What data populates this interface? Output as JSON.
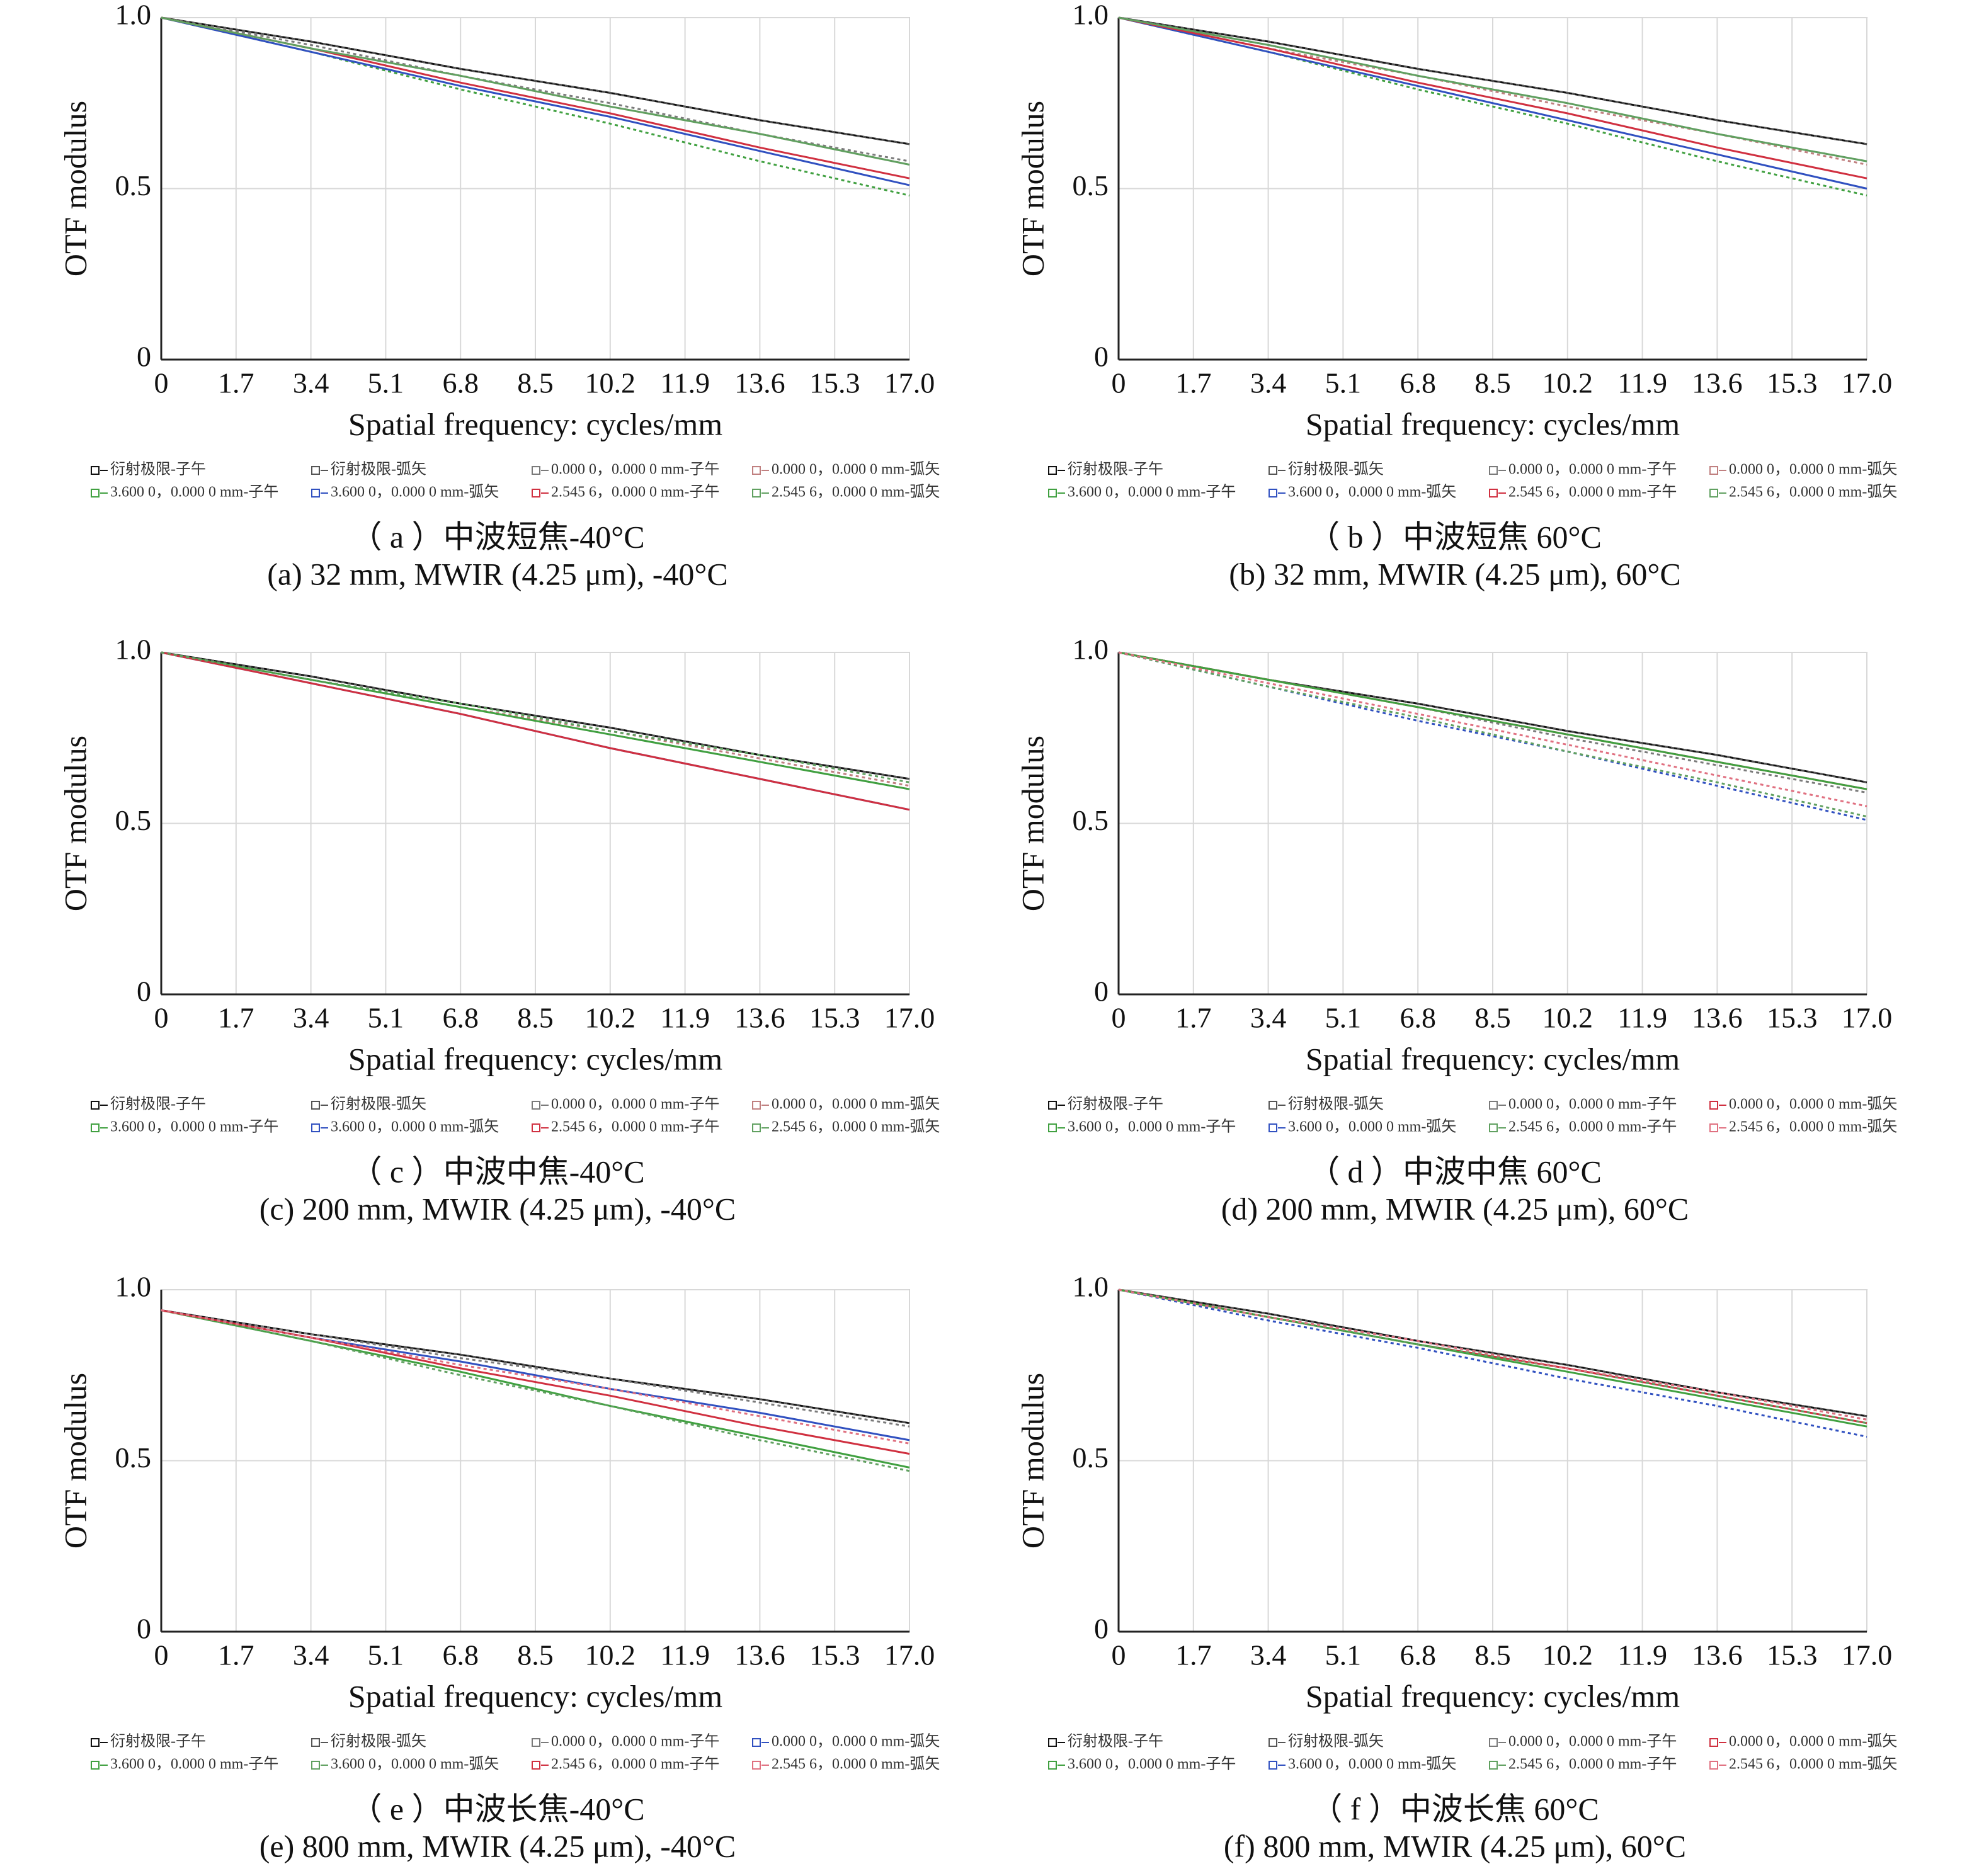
{
  "chart_data": [
    {
      "type": "line",
      "title": "（ a ）中波短焦-40°C",
      "caption": "(a) 32 mm, MWIR (4.25 μm), -40°C",
      "xlabel": "Spatial frequency: cycles/mm",
      "ylabel": "OTF modulus",
      "xlim": [
        0,
        17
      ],
      "ylim": [
        0,
        1
      ],
      "xticks": [
        0,
        1.7,
        3.4,
        5.1,
        6.8,
        8.5,
        10.2,
        11.9,
        13.6,
        15.3,
        {
          "value": 17,
          "label": "17.0"
        }
      ],
      "yticks": [
        0,
        0.5,
        {
          "value": 1,
          "label": "1.0"
        }
      ],
      "grid": true,
      "x": [
        0,
        3.4,
        6.8,
        10.2,
        13.6,
        17
      ],
      "series": [
        {
          "name": "衍射极限-子午",
          "color": "#111111",
          "dashed": false,
          "values": [
            1,
            0.93,
            0.85,
            0.78,
            0.7,
            0.63
          ]
        },
        {
          "name": "衍射极限-弧矢",
          "color": "#555555",
          "dashed": true,
          "values": [
            1,
            0.93,
            0.85,
            0.78,
            0.7,
            0.63
          ]
        },
        {
          "name": "0.000 0，0.000 0 mm-子午",
          "color": "#7a7a7a",
          "dashed": true,
          "values": [
            1,
            0.92,
            0.83,
            0.75,
            0.66,
            0.58
          ]
        },
        {
          "name": "0.000 0，0.000 0 mm-弧矢",
          "color": "#c08080",
          "dashed": true,
          "values": [
            1,
            0.91,
            0.83,
            0.74,
            0.66,
            0.57
          ]
        },
        {
          "name": "3.600 0，0.000 0 mm-子午",
          "color": "#40a040",
          "dashed": true,
          "values": [
            1,
            0.9,
            0.79,
            0.69,
            0.58,
            0.48
          ]
        },
        {
          "name": "3.600 0，0.000 0 mm-弧矢",
          "color": "#3050c0",
          "dashed": false,
          "values": [
            1,
            0.9,
            0.8,
            0.71,
            0.61,
            0.51
          ]
        },
        {
          "name": "2.545 6，0.000 0 mm-子午",
          "color": "#d03040",
          "dashed": false,
          "values": [
            1,
            0.91,
            0.81,
            0.72,
            0.62,
            0.53
          ]
        },
        {
          "name": "2.545 6，0.000 0 mm-弧矢",
          "color": "#60a060",
          "dashed": false,
          "values": [
            1,
            0.91,
            0.83,
            0.74,
            0.66,
            0.57
          ]
        }
      ]
    },
    {
      "type": "line",
      "title": "（ b ）中波短焦 60°C",
      "caption": "(b) 32 mm, MWIR (4.25 μm), 60°C",
      "xlabel": "Spatial frequency: cycles/mm",
      "ylabel": "OTF modulus",
      "xlim": [
        0,
        17
      ],
      "ylim": [
        0,
        1
      ],
      "xticks": [
        0,
        1.7,
        3.4,
        5.1,
        6.8,
        8.5,
        10.2,
        11.9,
        13.6,
        15.3,
        {
          "value": 17,
          "label": "17.0"
        }
      ],
      "yticks": [
        0,
        0.5,
        {
          "value": 1,
          "label": "1.0"
        }
      ],
      "grid": true,
      "x": [
        0,
        3.4,
        6.8,
        10.2,
        13.6,
        17
      ],
      "series": [
        {
          "name": "衍射极限-子午",
          "color": "#111111",
          "dashed": false,
          "values": [
            1,
            0.93,
            0.85,
            0.78,
            0.7,
            0.63
          ]
        },
        {
          "name": "衍射极限-弧矢",
          "color": "#555555",
          "dashed": true,
          "values": [
            1,
            0.93,
            0.85,
            0.78,
            0.7,
            0.63
          ]
        },
        {
          "name": "0.000 0，0.000 0 mm-子午",
          "color": "#7a7a7a",
          "dashed": true,
          "values": [
            1,
            0.92,
            0.83,
            0.75,
            0.66,
            0.58
          ]
        },
        {
          "name": "0.000 0，0.000 0 mm-弧矢",
          "color": "#c08080",
          "dashed": true,
          "values": [
            1,
            0.91,
            0.83,
            0.74,
            0.66,
            0.57
          ]
        },
        {
          "name": "3.600 0，0.000 0 mm-子午",
          "color": "#40a040",
          "dashed": true,
          "values": [
            1,
            0.9,
            0.79,
            0.69,
            0.58,
            0.48
          ]
        },
        {
          "name": "3.600 0，0.000 0 mm-弧矢",
          "color": "#3050c0",
          "dashed": false,
          "values": [
            1,
            0.9,
            0.8,
            0.7,
            0.6,
            0.5
          ]
        },
        {
          "name": "2.545 6，0.000 0 mm-子午",
          "color": "#d03040",
          "dashed": false,
          "values": [
            1,
            0.91,
            0.81,
            0.72,
            0.62,
            0.53
          ]
        },
        {
          "name": "2.545 6，0.000 0 mm-弧矢",
          "color": "#60a060",
          "dashed": false,
          "values": [
            1,
            0.92,
            0.83,
            0.75,
            0.66,
            0.58
          ]
        }
      ]
    },
    {
      "type": "line",
      "title": "（ c ）中波中焦-40°C",
      "caption": "(c) 200 mm, MWIR (4.25 μm), -40°C",
      "xlabel": "Spatial frequency: cycles/mm",
      "ylabel": "OTF modulus",
      "xlim": [
        0,
        17
      ],
      "ylim": [
        0,
        1
      ],
      "xticks": [
        0,
        1.7,
        3.4,
        5.1,
        6.8,
        8.5,
        10.2,
        11.9,
        13.6,
        15.3,
        {
          "value": 17,
          "label": "17.0"
        }
      ],
      "yticks": [
        0,
        0.5,
        {
          "value": 1,
          "label": "1.0"
        }
      ],
      "grid": true,
      "x": [
        0,
        3.4,
        6.8,
        10.2,
        13.6,
        17
      ],
      "series": [
        {
          "name": "衍射极限-子午",
          "color": "#111111",
          "dashed": false,
          "values": [
            1,
            0.93,
            0.85,
            0.78,
            0.7,
            0.63
          ]
        },
        {
          "name": "衍射极限-弧矢",
          "color": "#555555",
          "dashed": true,
          "values": [
            1,
            0.93,
            0.85,
            0.78,
            0.7,
            0.63
          ]
        },
        {
          "name": "0.000 0，0.000 0 mm-子午",
          "color": "#7a7a7a",
          "dashed": true,
          "values": [
            1,
            0.92,
            0.84,
            0.76,
            0.68,
            0.6
          ]
        },
        {
          "name": "0.000 0，0.000 0 mm-弧矢",
          "color": "#c08080",
          "dashed": true,
          "values": [
            1,
            0.92,
            0.84,
            0.77,
            0.69,
            0.61
          ]
        },
        {
          "name": "3.600 0，0.000 0 mm-子午",
          "color": "#40a040",
          "dashed": false,
          "values": [
            1,
            0.92,
            0.84,
            0.76,
            0.68,
            0.6
          ]
        },
        {
          "name": "3.600 0，0.000 0 mm-弧矢",
          "color": "#3050c0",
          "dashed": false,
          "values": [
            1,
            0.91,
            0.82,
            0.72,
            0.63,
            0.54
          ]
        },
        {
          "name": "2.545 6，0.000 0 mm-子午",
          "color": "#d03040",
          "dashed": false,
          "values": [
            1,
            0.91,
            0.82,
            0.72,
            0.63,
            0.54
          ]
        },
        {
          "name": "2.545 6，0.000 0 mm-弧矢",
          "color": "#60a060",
          "dashed": true,
          "values": [
            1,
            0.92,
            0.85,
            0.77,
            0.7,
            0.62
          ]
        }
      ]
    },
    {
      "type": "line",
      "title": "（ d ）中波中焦 60°C",
      "caption": "(d) 200 mm, MWIR (4.25 μm), 60°C",
      "xlabel": "Spatial frequency: cycles/mm",
      "ylabel": "OTF modulus",
      "xlim": [
        0,
        17
      ],
      "ylim": [
        0,
        1
      ],
      "xticks": [
        0,
        1.7,
        3.4,
        5.1,
        6.8,
        8.5,
        10.2,
        11.9,
        13.6,
        15.3,
        {
          "value": 17,
          "label": "17.0"
        }
      ],
      "yticks": [
        0,
        0.5,
        {
          "value": 1,
          "label": "1.0"
        }
      ],
      "grid": true,
      "x": [
        0,
        3.4,
        6.8,
        10.2,
        13.6,
        17
      ],
      "series": [
        {
          "name": "衍射极限-子午",
          "color": "#111111",
          "dashed": false,
          "values": [
            1,
            0.92,
            0.85,
            0.77,
            0.7,
            0.62
          ]
        },
        {
          "name": "衍射极限-弧矢",
          "color": "#555555",
          "dashed": true,
          "values": [
            1,
            0.92,
            0.85,
            0.77,
            0.7,
            0.62
          ]
        },
        {
          "name": "0.000 0，0.000 0 mm-子午",
          "color": "#7a7a7a",
          "dashed": true,
          "values": [
            1,
            0.92,
            0.84,
            0.75,
            0.67,
            0.59
          ]
        },
        {
          "name": "0.000 0，0.000 0 mm-弧矢",
          "color": "#d03040",
          "dashed": false,
          "values": [
            1,
            0.92,
            0.84,
            0.76,
            0.68,
            0.6
          ]
        },
        {
          "name": "3.600 0，0.000 0 mm-子午",
          "color": "#40a040",
          "dashed": false,
          "values": [
            1,
            0.92,
            0.84,
            0.76,
            0.68,
            0.6
          ]
        },
        {
          "name": "3.600 0，0.000 0 mm-弧矢",
          "color": "#3050c0",
          "dashed": true,
          "values": [
            1,
            0.9,
            0.8,
            0.71,
            0.61,
            0.51
          ]
        },
        {
          "name": "2.545 6，0.000 0 mm-子午",
          "color": "#60a060",
          "dashed": true,
          "values": [
            1,
            0.9,
            0.81,
            0.71,
            0.62,
            0.52
          ]
        },
        {
          "name": "2.545 6，0.000 0 mm-弧矢",
          "color": "#e07080",
          "dashed": true,
          "values": [
            1,
            0.91,
            0.82,
            0.73,
            0.64,
            0.55
          ]
        }
      ]
    },
    {
      "type": "line",
      "title": "（ e ）中波长焦-40°C",
      "caption": "(e) 800 mm, MWIR (4.25 μm), -40°C",
      "xlabel": "Spatial frequency: cycles/mm",
      "ylabel": "OTF modulus",
      "xlim": [
        0,
        17
      ],
      "ylim": [
        0,
        1
      ],
      "xticks": [
        0,
        1.7,
        3.4,
        5.1,
        6.8,
        8.5,
        10.2,
        11.9,
        13.6,
        15.3,
        {
          "value": 17,
          "label": "17.0"
        }
      ],
      "yticks": [
        0,
        0.5,
        {
          "value": 1,
          "label": "1.0"
        }
      ],
      "grid": true,
      "x": [
        0,
        3.4,
        6.8,
        10.2,
        13.6,
        17
      ],
      "series": [
        {
          "name": "衍射极限-子午",
          "color": "#111111",
          "dashed": false,
          "values": [
            0.94,
            0.87,
            0.81,
            0.74,
            0.68,
            0.61
          ]
        },
        {
          "name": "衍射极限-弧矢",
          "color": "#555555",
          "dashed": true,
          "values": [
            0.94,
            0.87,
            0.81,
            0.74,
            0.68,
            0.61
          ]
        },
        {
          "name": "0.000 0，0.000 0 mm-子午",
          "color": "#7a7a7a",
          "dashed": true,
          "values": [
            0.94,
            0.87,
            0.8,
            0.74,
            0.67,
            0.6
          ]
        },
        {
          "name": "0.000 0，0.000 0 mm-弧矢",
          "color": "#3050c0",
          "dashed": false,
          "values": [
            0.94,
            0.86,
            0.79,
            0.71,
            0.64,
            0.56
          ]
        },
        {
          "name": "3.600 0，0.000 0 mm-子午",
          "color": "#40a040",
          "dashed": false,
          "values": [
            0.94,
            0.85,
            0.76,
            0.66,
            0.57,
            0.48
          ]
        },
        {
          "name": "3.600 0，0.000 0 mm-弧矢",
          "color": "#60a060",
          "dashed": true,
          "values": [
            0.94,
            0.85,
            0.75,
            0.66,
            0.56,
            0.47
          ]
        },
        {
          "name": "2.545 6，0.000 0 mm-子午",
          "color": "#d03040",
          "dashed": false,
          "values": [
            0.94,
            0.86,
            0.77,
            0.69,
            0.6,
            0.52
          ]
        },
        {
          "name": "2.545 6，0.000 0 mm-弧矢",
          "color": "#e07080",
          "dashed": true,
          "values": [
            0.94,
            0.86,
            0.78,
            0.71,
            0.63,
            0.55
          ]
        }
      ]
    },
    {
      "type": "line",
      "title": "（ f ）中波长焦 60°C",
      "caption": "(f) 800 mm, MWIR (4.25 μm), 60°C",
      "xlabel": "Spatial frequency: cycles/mm",
      "ylabel": "OTF modulus",
      "xlim": [
        0,
        17
      ],
      "ylim": [
        0,
        1
      ],
      "xticks": [
        0,
        1.7,
        3.4,
        5.1,
        6.8,
        8.5,
        10.2,
        11.9,
        13.6,
        15.3,
        {
          "value": 17,
          "label": "17.0"
        }
      ],
      "yticks": [
        0,
        0.5,
        {
          "value": 1,
          "label": "1.0"
        }
      ],
      "grid": true,
      "x": [
        0,
        3.4,
        6.8,
        10.2,
        13.6,
        17
      ],
      "series": [
        {
          "name": "衍射极限-子午",
          "color": "#111111",
          "dashed": false,
          "values": [
            1,
            0.93,
            0.85,
            0.78,
            0.7,
            0.63
          ]
        },
        {
          "name": "衍射极限-弧矢",
          "color": "#555555",
          "dashed": true,
          "values": [
            1,
            0.93,
            0.85,
            0.78,
            0.7,
            0.63
          ]
        },
        {
          "name": "0.000 0，0.000 0 mm-子午",
          "color": "#7a7a7a",
          "dashed": true,
          "values": [
            1,
            0.92,
            0.85,
            0.77,
            0.7,
            0.62
          ]
        },
        {
          "name": "0.000 0，0.000 0 mm-弧矢",
          "color": "#d03040",
          "dashed": false,
          "values": [
            1,
            0.92,
            0.84,
            0.77,
            0.69,
            0.61
          ]
        },
        {
          "name": "3.600 0，0.000 0 mm-子午",
          "color": "#40a040",
          "dashed": false,
          "values": [
            1,
            0.92,
            0.84,
            0.76,
            0.68,
            0.6
          ]
        },
        {
          "name": "3.600 0，0.000 0 mm-弧矢",
          "color": "#3050c0",
          "dashed": true,
          "values": [
            1,
            0.91,
            0.83,
            0.74,
            0.66,
            0.57
          ]
        },
        {
          "name": "2.545 6，0.000 0 mm-子午",
          "color": "#60a060",
          "dashed": true,
          "values": [
            1,
            0.92,
            0.84,
            0.77,
            0.69,
            0.61
          ]
        },
        {
          "name": "2.545 6，0.000 0 mm-弧矢",
          "color": "#e07080",
          "dashed": true,
          "values": [
            1,
            0.92,
            0.85,
            0.77,
            0.7,
            0.62
          ]
        }
      ]
    }
  ]
}
